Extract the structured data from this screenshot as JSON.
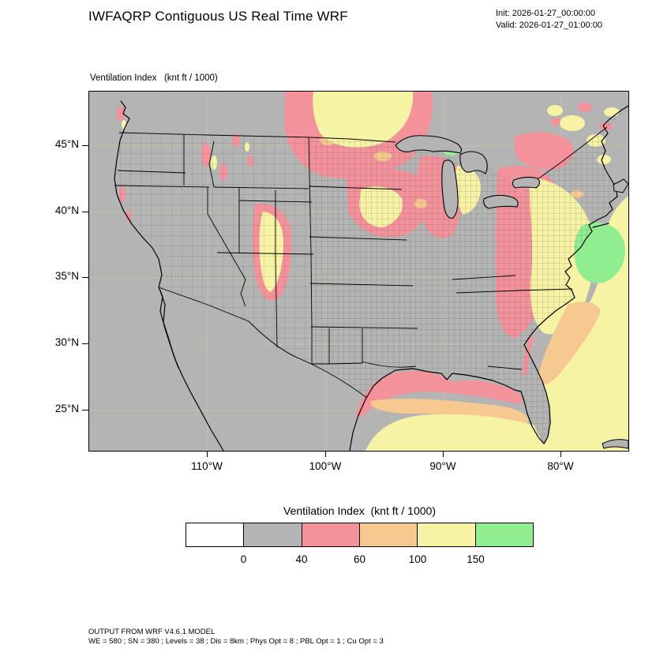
{
  "header": {
    "title": "IWFAQRP Contiguous US Real Time WRF",
    "init_line": "Init: 2026-01-27_00:00:00",
    "valid_line": "Valid: 2026-01-27_01:00:00"
  },
  "map": {
    "variable_label": "Ventilation Index   (knt ft / 1000)",
    "lat_ticks": [
      "45°N",
      "40°N",
      "35°N",
      "30°N",
      "25°N"
    ],
    "lon_ticks": [
      "110°W",
      "100°W",
      "90°W",
      "80°W"
    ],
    "background_color": "#b4b4b4"
  },
  "legend": {
    "title": "Ventilation Index  (knt ft / 1000)",
    "colors": [
      "#ffffff",
      "#b4b4b4",
      "#f4929b",
      "#f5c98f",
      "#f6f3a4",
      "#90ee90"
    ],
    "breaks": [
      "0",
      "40",
      "60",
      "100",
      "150"
    ]
  },
  "footer": {
    "line1": "OUTPUT FROM WRF V4.6.1 MODEL",
    "line2": "WE = 580 ; SN = 380 ; Levels = 38 ; Dis = 8km ; Phys Opt = 8 ; PBL Opt = 1 ; Cu Opt = 3"
  }
}
